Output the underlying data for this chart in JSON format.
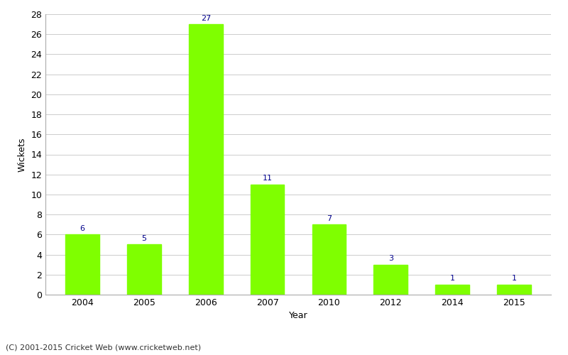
{
  "years": [
    "2004",
    "2005",
    "2006",
    "2007",
    "2010",
    "2012",
    "2014",
    "2015"
  ],
  "wickets": [
    6,
    5,
    27,
    11,
    7,
    3,
    1,
    1
  ],
  "bar_color": "#7fff00",
  "bar_edge_color": "#7fff00",
  "label_color": "#00008b",
  "xlabel": "Year",
  "ylabel": "Wickets",
  "ylim": [
    0,
    28
  ],
  "yticks": [
    0,
    2,
    4,
    6,
    8,
    10,
    12,
    14,
    16,
    18,
    20,
    22,
    24,
    26,
    28
  ],
  "grid_color": "#cccccc",
  "bg_color": "#ffffff",
  "footer": "(C) 2001-2015 Cricket Web (www.cricketweb.net)",
  "label_fontsize": 8,
  "axis_tick_fontsize": 9,
  "axis_label_fontsize": 9,
  "footer_fontsize": 8
}
